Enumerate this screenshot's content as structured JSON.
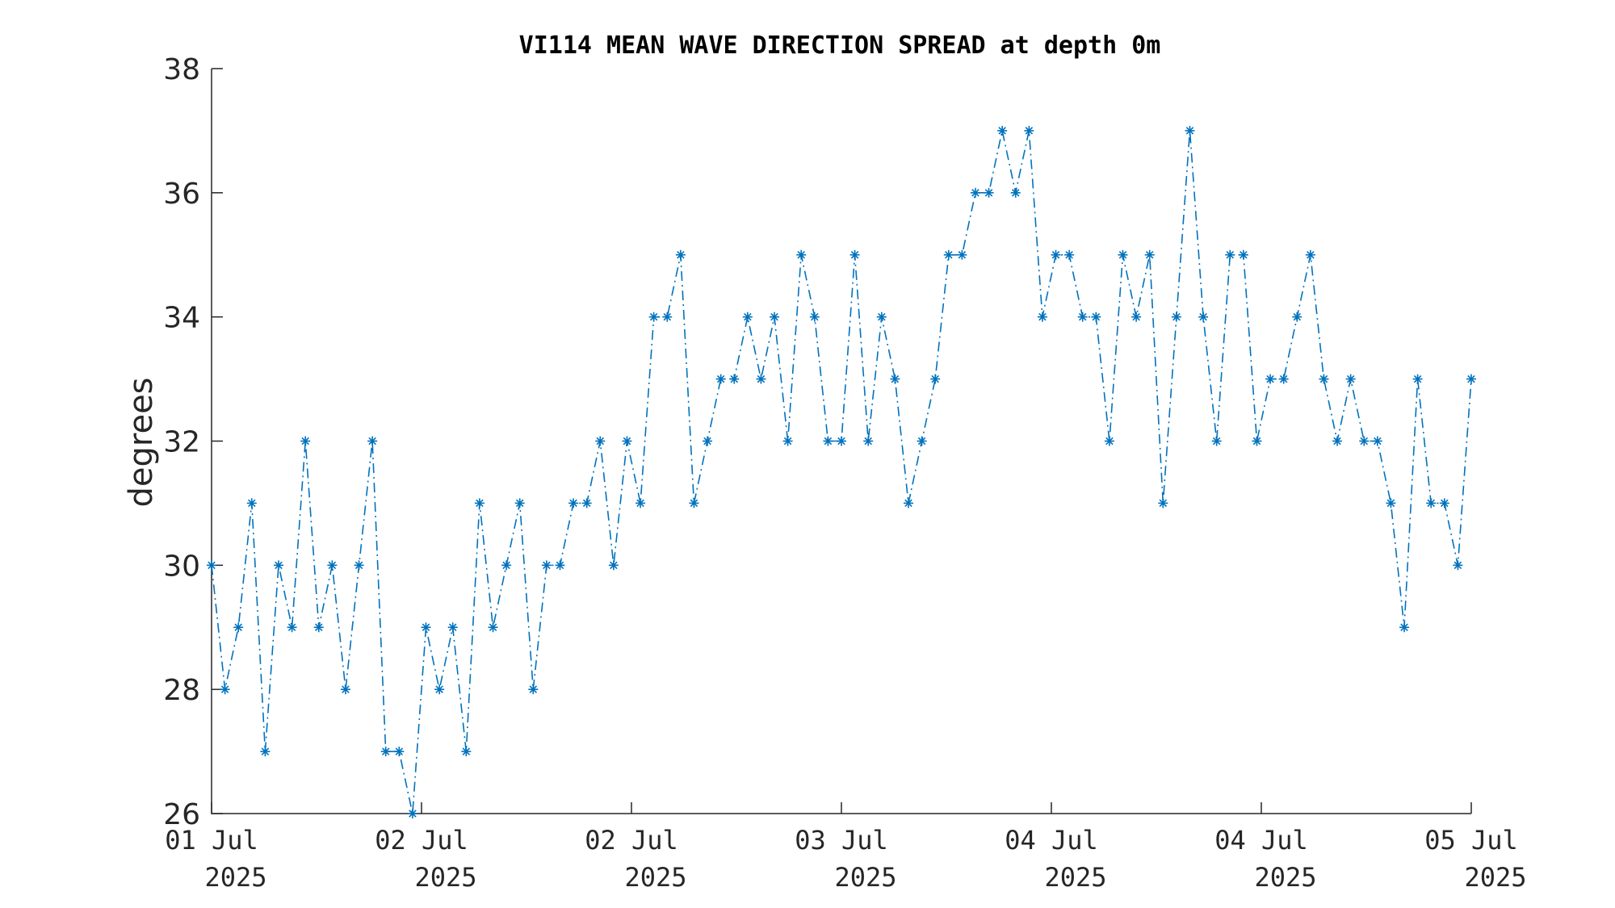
{
  "chart_data": {
    "type": "line",
    "title": "VI114 MEAN WAVE DIRECTION SPREAD at depth 0m",
    "xlabel": "",
    "ylabel": "degrees",
    "ylim": [
      26,
      38
    ],
    "yticks": [
      "26",
      "28",
      "30",
      "32",
      "34",
      "36",
      "38"
    ],
    "xticks": [
      {
        "day": "01 Jul",
        "year": "2025"
      },
      {
        "day": "02 Jul",
        "year": "2025"
      },
      {
        "day": "02 Jul",
        "year": "2025"
      },
      {
        "day": "03 Jul",
        "year": "2025"
      },
      {
        "day": "04 Jul",
        "year": "2025"
      },
      {
        "day": "04 Jul",
        "year": "2025"
      },
      {
        "day": "05 Jul",
        "year": "2025"
      }
    ],
    "grid": false,
    "color": "#0072BD",
    "line_style": "dash-dot",
    "marker": "asterisk",
    "series": [
      {
        "values": [
          30,
          28,
          29,
          31,
          27,
          30,
          29,
          32,
          29,
          30,
          28,
          30,
          32,
          27,
          27,
          26,
          29,
          28,
          29,
          27,
          31,
          29,
          30,
          31,
          28,
          30,
          30,
          31,
          31,
          32,
          30,
          32,
          31,
          34,
          34,
          35,
          31,
          32,
          33,
          33,
          34,
          33,
          34,
          32,
          35,
          34,
          32,
          32,
          35,
          32,
          34,
          33,
          31,
          32,
          33,
          35,
          35,
          36,
          36,
          37,
          36,
          37,
          34,
          35,
          35,
          34,
          34,
          32,
          35,
          34,
          35,
          31,
          34,
          37,
          34,
          32,
          35,
          35,
          32,
          33,
          33,
          34,
          35,
          33,
          32,
          33,
          32,
          32,
          31,
          29,
          33,
          31,
          31,
          30,
          33
        ]
      }
    ]
  }
}
